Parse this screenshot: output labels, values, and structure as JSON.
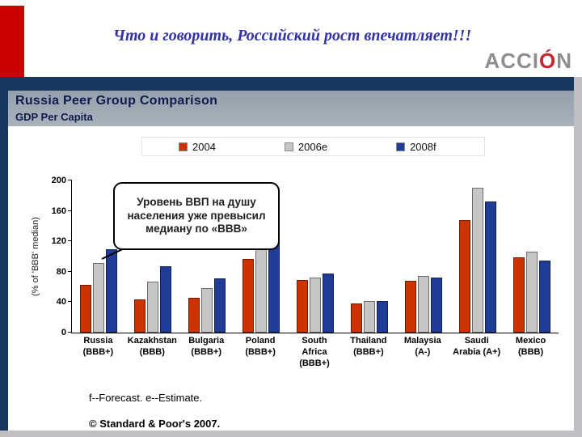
{
  "slide": {
    "title": "Что и говорить, Российский рост впечатляет!!!",
    "logo": {
      "part1": "ACCI",
      "accent": "Ó",
      "part2": "N"
    }
  },
  "chart_panel": {
    "title": "Russia Peer Group Comparison",
    "subtitle": "GDP Per Capita",
    "footnote": "f--Forecast. e--Estimate.",
    "copyright": "© Standard & Poor's 2007."
  },
  "chart_data": {
    "type": "bar",
    "title": "Russia Peer Group Comparison — GDP Per Capita",
    "ylabel": "(% of 'BBB' median)",
    "ylim": [
      0,
      200
    ],
    "yticks": [
      0,
      40,
      80,
      120,
      160,
      200
    ],
    "grid": false,
    "legend_position": "top",
    "annotation": "Уровень ВВП на душу населения уже превысил медиану по «BBB»",
    "categories": [
      "Russia (BBB+)",
      "Kazakhstan (BBB)",
      "Bulgaria (BBB+)",
      "Poland (BBB+)",
      "South Africa (BBB+)",
      "Thailand (BBB+)",
      "Malaysia (A-)",
      "Saudi Arabia (A+)",
      "Mexico (BBB)"
    ],
    "series": [
      {
        "name": "2004",
        "color": "#CC3300",
        "values": [
          63,
          44,
          46,
          97,
          69,
          38,
          68,
          148,
          99
        ]
      },
      {
        "name": "2006e",
        "color": "#C6C6C6",
        "values": [
          91,
          67,
          58,
          128,
          72,
          41,
          74,
          190,
          106
        ]
      },
      {
        "name": "2008f",
        "color": "#1F3C96",
        "values": [
          110,
          87,
          71,
          130,
          78,
          42,
          72,
          172,
          95
        ]
      }
    ]
  }
}
